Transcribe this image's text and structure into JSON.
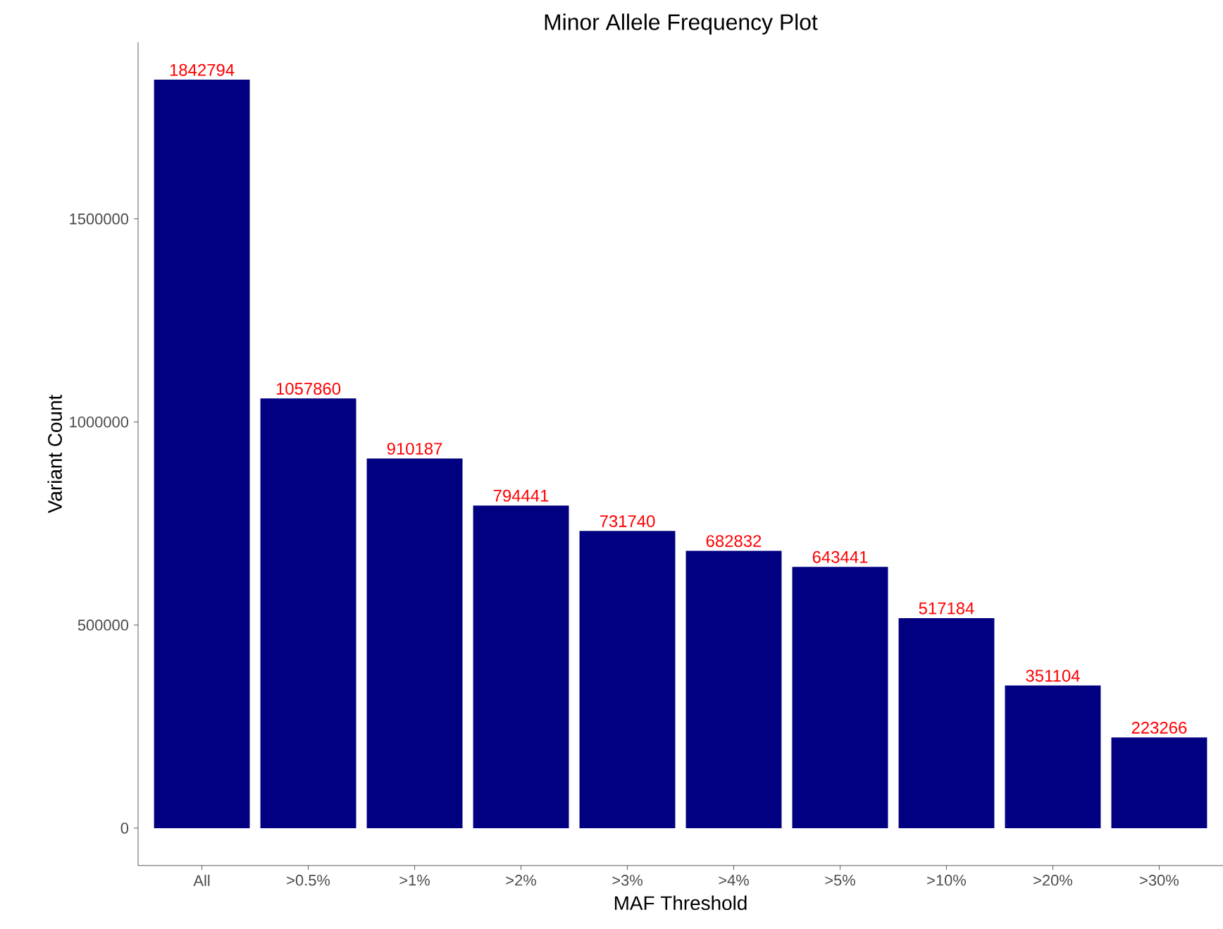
{
  "chart_data": {
    "type": "bar",
    "title": "Minor Allele Frequency Plot",
    "xlabel": "MAF Threshold",
    "ylabel": "Variant Count",
    "categories": [
      "All",
      ">0.5%",
      ">1%",
      ">2%",
      ">3%",
      ">4%",
      ">5%",
      ">10%",
      ">20%",
      ">30%"
    ],
    "values": [
      1842794,
      1057860,
      910187,
      794441,
      731740,
      682832,
      643441,
      517184,
      351104,
      223266
    ],
    "color": "#000080",
    "data_labels": true,
    "ylim": [
      -92140,
      1934934
    ],
    "yticks": [
      0,
      500000,
      1000000,
      1500000
    ]
  }
}
